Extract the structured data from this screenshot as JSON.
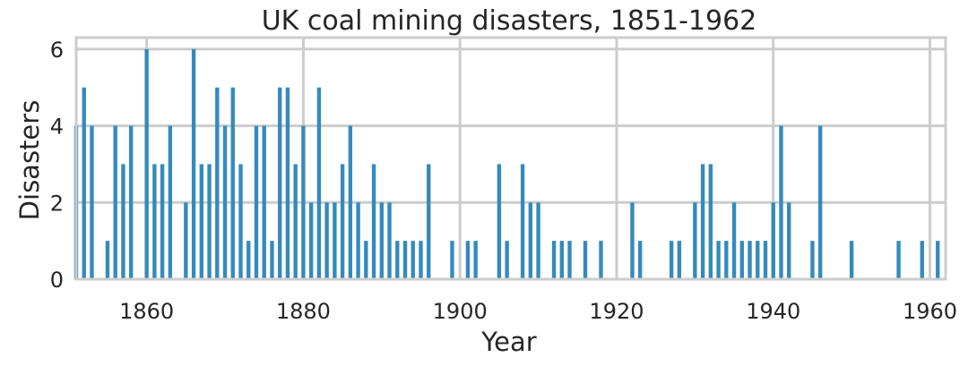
{
  "chart_data": {
    "type": "bar",
    "title": "UK coal mining disasters, 1851-1962",
    "xlabel": "Year",
    "ylabel": "Disasters",
    "xlim": [
      1851,
      1962
    ],
    "ylim": [
      0,
      6.3
    ],
    "grid": true,
    "x_ticks": [
      1860,
      1880,
      1900,
      1920,
      1940,
      1960
    ],
    "y_ticks": [
      0,
      2,
      4,
      6
    ],
    "bar_color": "#348ABD",
    "x": [
      1851,
      1852,
      1853,
      1854,
      1855,
      1856,
      1857,
      1858,
      1859,
      1860,
      1861,
      1862,
      1863,
      1864,
      1865,
      1866,
      1867,
      1868,
      1869,
      1870,
      1871,
      1872,
      1873,
      1874,
      1875,
      1876,
      1877,
      1878,
      1879,
      1880,
      1881,
      1882,
      1883,
      1884,
      1885,
      1886,
      1887,
      1888,
      1889,
      1890,
      1891,
      1892,
      1893,
      1894,
      1895,
      1896,
      1897,
      1898,
      1899,
      1900,
      1901,
      1902,
      1903,
      1904,
      1905,
      1906,
      1907,
      1908,
      1909,
      1910,
      1911,
      1912,
      1913,
      1914,
      1915,
      1916,
      1917,
      1918,
      1919,
      1920,
      1921,
      1922,
      1923,
      1924,
      1925,
      1926,
      1927,
      1928,
      1929,
      1930,
      1931,
      1932,
      1933,
      1934,
      1935,
      1936,
      1937,
      1938,
      1939,
      1940,
      1941,
      1942,
      1943,
      1944,
      1945,
      1946,
      1947,
      1948,
      1949,
      1950,
      1951,
      1952,
      1953,
      1954,
      1955,
      1956,
      1957,
      1958,
      1959,
      1960,
      1961
    ],
    "values": [
      4,
      5,
      4,
      0,
      1,
      4,
      3,
      4,
      0,
      6,
      3,
      3,
      4,
      0,
      2,
      6,
      3,
      3,
      5,
      4,
      5,
      3,
      1,
      4,
      4,
      1,
      5,
      5,
      3,
      4,
      2,
      5,
      2,
      2,
      3,
      4,
      2,
      1,
      3,
      2,
      2,
      1,
      1,
      1,
      1,
      3,
      0,
      0,
      1,
      0,
      1,
      1,
      0,
      0,
      3,
      1,
      0,
      3,
      2,
      2,
      0,
      1,
      1,
      1,
      0,
      1,
      0,
      1,
      0,
      0,
      0,
      2,
      1,
      0,
      0,
      0,
      1,
      1,
      0,
      2,
      3,
      3,
      1,
      1,
      2,
      1,
      1,
      1,
      1,
      2,
      4,
      2,
      0,
      0,
      1,
      4,
      0,
      0,
      0,
      1,
      0,
      0,
      0,
      0,
      0,
      1,
      0,
      0,
      1,
      0,
      1
    ]
  }
}
